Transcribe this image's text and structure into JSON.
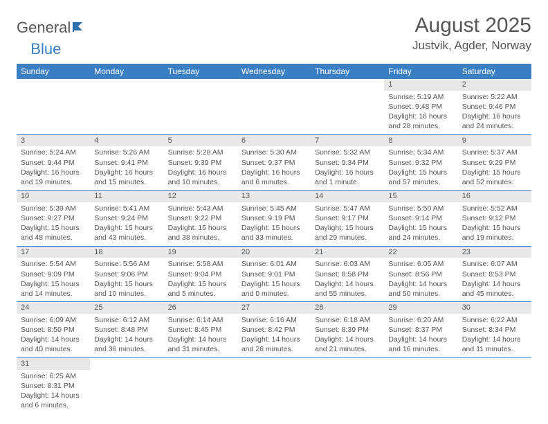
{
  "logo": {
    "part1": "General",
    "part2": "Blue"
  },
  "title": "August 2025",
  "location": "Justvik, Agder, Norway",
  "colors": {
    "header_bg": "#3a7fc4",
    "header_text": "#ffffff",
    "daynum_bg": "#e8e8e8",
    "row_divider": "#3a7fc4",
    "text": "#555555",
    "page_bg": "#ffffff"
  },
  "day_headers": [
    "Sunday",
    "Monday",
    "Tuesday",
    "Wednesday",
    "Thursday",
    "Friday",
    "Saturday"
  ],
  "weeks": [
    [
      null,
      null,
      null,
      null,
      null,
      {
        "n": "1",
        "sunrise": "Sunrise: 5:19 AM",
        "sunset": "Sunset: 9:48 PM",
        "daylight": "Daylight: 16 hours and 28 minutes."
      },
      {
        "n": "2",
        "sunrise": "Sunrise: 5:22 AM",
        "sunset": "Sunset: 9:46 PM",
        "daylight": "Daylight: 16 hours and 24 minutes."
      }
    ],
    [
      {
        "n": "3",
        "sunrise": "Sunrise: 5:24 AM",
        "sunset": "Sunset: 9:44 PM",
        "daylight": "Daylight: 16 hours and 19 minutes."
      },
      {
        "n": "4",
        "sunrise": "Sunrise: 5:26 AM",
        "sunset": "Sunset: 9:41 PM",
        "daylight": "Daylight: 16 hours and 15 minutes."
      },
      {
        "n": "5",
        "sunrise": "Sunrise: 5:28 AM",
        "sunset": "Sunset: 9:39 PM",
        "daylight": "Daylight: 16 hours and 10 minutes."
      },
      {
        "n": "6",
        "sunrise": "Sunrise: 5:30 AM",
        "sunset": "Sunset: 9:37 PM",
        "daylight": "Daylight: 16 hours and 6 minutes."
      },
      {
        "n": "7",
        "sunrise": "Sunrise: 5:32 AM",
        "sunset": "Sunset: 9:34 PM",
        "daylight": "Daylight: 16 hours and 1 minute."
      },
      {
        "n": "8",
        "sunrise": "Sunrise: 5:34 AM",
        "sunset": "Sunset: 9:32 PM",
        "daylight": "Daylight: 15 hours and 57 minutes."
      },
      {
        "n": "9",
        "sunrise": "Sunrise: 5:37 AM",
        "sunset": "Sunset: 9:29 PM",
        "daylight": "Daylight: 15 hours and 52 minutes."
      }
    ],
    [
      {
        "n": "10",
        "sunrise": "Sunrise: 5:39 AM",
        "sunset": "Sunset: 9:27 PM",
        "daylight": "Daylight: 15 hours and 48 minutes."
      },
      {
        "n": "11",
        "sunrise": "Sunrise: 5:41 AM",
        "sunset": "Sunset: 9:24 PM",
        "daylight": "Daylight: 15 hours and 43 minutes."
      },
      {
        "n": "12",
        "sunrise": "Sunrise: 5:43 AM",
        "sunset": "Sunset: 9:22 PM",
        "daylight": "Daylight: 15 hours and 38 minutes."
      },
      {
        "n": "13",
        "sunrise": "Sunrise: 5:45 AM",
        "sunset": "Sunset: 9:19 PM",
        "daylight": "Daylight: 15 hours and 33 minutes."
      },
      {
        "n": "14",
        "sunrise": "Sunrise: 5:47 AM",
        "sunset": "Sunset: 9:17 PM",
        "daylight": "Daylight: 15 hours and 29 minutes."
      },
      {
        "n": "15",
        "sunrise": "Sunrise: 5:50 AM",
        "sunset": "Sunset: 9:14 PM",
        "daylight": "Daylight: 15 hours and 24 minutes."
      },
      {
        "n": "16",
        "sunrise": "Sunrise: 5:52 AM",
        "sunset": "Sunset: 9:12 PM",
        "daylight": "Daylight: 15 hours and 19 minutes."
      }
    ],
    [
      {
        "n": "17",
        "sunrise": "Sunrise: 5:54 AM",
        "sunset": "Sunset: 9:09 PM",
        "daylight": "Daylight: 15 hours and 14 minutes."
      },
      {
        "n": "18",
        "sunrise": "Sunrise: 5:56 AM",
        "sunset": "Sunset: 9:06 PM",
        "daylight": "Daylight: 15 hours and 10 minutes."
      },
      {
        "n": "19",
        "sunrise": "Sunrise: 5:58 AM",
        "sunset": "Sunset: 9:04 PM",
        "daylight": "Daylight: 15 hours and 5 minutes."
      },
      {
        "n": "20",
        "sunrise": "Sunrise: 6:01 AM",
        "sunset": "Sunset: 9:01 PM",
        "daylight": "Daylight: 15 hours and 0 minutes."
      },
      {
        "n": "21",
        "sunrise": "Sunrise: 6:03 AM",
        "sunset": "Sunset: 8:58 PM",
        "daylight": "Daylight: 14 hours and 55 minutes."
      },
      {
        "n": "22",
        "sunrise": "Sunrise: 6:05 AM",
        "sunset": "Sunset: 8:56 PM",
        "daylight": "Daylight: 14 hours and 50 minutes."
      },
      {
        "n": "23",
        "sunrise": "Sunrise: 6:07 AM",
        "sunset": "Sunset: 8:53 PM",
        "daylight": "Daylight: 14 hours and 45 minutes."
      }
    ],
    [
      {
        "n": "24",
        "sunrise": "Sunrise: 6:09 AM",
        "sunset": "Sunset: 8:50 PM",
        "daylight": "Daylight: 14 hours and 40 minutes."
      },
      {
        "n": "25",
        "sunrise": "Sunrise: 6:12 AM",
        "sunset": "Sunset: 8:48 PM",
        "daylight": "Daylight: 14 hours and 36 minutes."
      },
      {
        "n": "26",
        "sunrise": "Sunrise: 6:14 AM",
        "sunset": "Sunset: 8:45 PM",
        "daylight": "Daylight: 14 hours and 31 minutes."
      },
      {
        "n": "27",
        "sunrise": "Sunrise: 6:16 AM",
        "sunset": "Sunset: 8:42 PM",
        "daylight": "Daylight: 14 hours and 26 minutes."
      },
      {
        "n": "28",
        "sunrise": "Sunrise: 6:18 AM",
        "sunset": "Sunset: 8:39 PM",
        "daylight": "Daylight: 14 hours and 21 minutes."
      },
      {
        "n": "29",
        "sunrise": "Sunrise: 6:20 AM",
        "sunset": "Sunset: 8:37 PM",
        "daylight": "Daylight: 14 hours and 16 minutes."
      },
      {
        "n": "30",
        "sunrise": "Sunrise: 6:22 AM",
        "sunset": "Sunset: 8:34 PM",
        "daylight": "Daylight: 14 hours and 11 minutes."
      }
    ],
    [
      {
        "n": "31",
        "sunrise": "Sunrise: 6:25 AM",
        "sunset": "Sunset: 8:31 PM",
        "daylight": "Daylight: 14 hours and 6 minutes."
      },
      null,
      null,
      null,
      null,
      null,
      null
    ]
  ]
}
